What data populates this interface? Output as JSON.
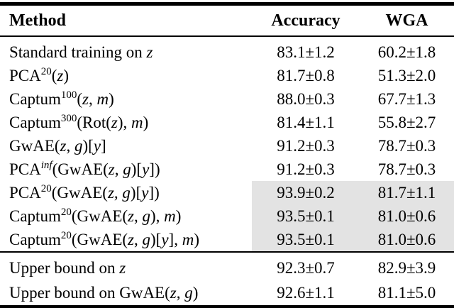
{
  "table": {
    "headers": {
      "method": "Method",
      "accuracy": "Accuracy",
      "wga": "WGA"
    },
    "highlight_color": "#e3e3e3",
    "rule_color": "#000000",
    "text_color": "#000000",
    "rows": [
      {
        "method": [
          [
            "Standard training on ",
            "rm"
          ],
          [
            "z",
            "it"
          ]
        ],
        "method_text": "Standard training on z",
        "accuracy": "83.1±1.2",
        "wga": "60.2±1.8",
        "highlight": false
      },
      {
        "method": [
          [
            "PCA",
            "rm"
          ],
          [
            "20",
            "sup"
          ],
          [
            "(",
            "rm"
          ],
          [
            "z",
            "it"
          ],
          [
            ")",
            "rm"
          ]
        ],
        "method_text": "PCA^20(z)",
        "accuracy": "81.7±0.8",
        "wga": "51.3±2.0",
        "highlight": false
      },
      {
        "method": [
          [
            "Captum",
            "rm"
          ],
          [
            "100",
            "sup"
          ],
          [
            "(",
            "rm"
          ],
          [
            "z",
            "it"
          ],
          [
            ", ",
            "rm"
          ],
          [
            "m",
            "it"
          ],
          [
            ")",
            "rm"
          ]
        ],
        "method_text": "Captum^100(z, m)",
        "accuracy": "88.0±0.3",
        "wga": "67.7±1.3",
        "highlight": false
      },
      {
        "method": [
          [
            "Captum",
            "rm"
          ],
          [
            "300",
            "sup"
          ],
          [
            "(Rot(",
            "rm"
          ],
          [
            "z",
            "it"
          ],
          [
            "), ",
            "rm"
          ],
          [
            "m",
            "it"
          ],
          [
            ")",
            "rm"
          ]
        ],
        "method_text": "Captum^300(Rot(z), m)",
        "accuracy": "81.4±1.1",
        "wga": "55.8±2.7",
        "highlight": false
      },
      {
        "method": [
          [
            "GwAE(",
            "rm"
          ],
          [
            "z",
            "it"
          ],
          [
            ", ",
            "rm"
          ],
          [
            "g",
            "it"
          ],
          [
            ")[",
            "rm"
          ],
          [
            "y",
            "it"
          ],
          [
            "]",
            "rm"
          ]
        ],
        "method_text": "GwAE(z, g)[y]",
        "accuracy": "91.2±0.3",
        "wga": "78.7±0.3",
        "highlight": false
      },
      {
        "method": [
          [
            "PCA",
            "rm"
          ],
          [
            "inf",
            "supit"
          ],
          [
            "(GwAE(",
            "rm"
          ],
          [
            "z",
            "it"
          ],
          [
            ", ",
            "rm"
          ],
          [
            "g",
            "it"
          ],
          [
            ")[",
            "rm"
          ],
          [
            "y",
            "it"
          ],
          [
            "])",
            "rm"
          ]
        ],
        "method_text": "PCA^inf(GwAE(z, g)[y])",
        "accuracy": "91.2±0.3",
        "wga": "78.7±0.3",
        "highlight": false
      },
      {
        "method": [
          [
            "PCA",
            "rm"
          ],
          [
            "20",
            "sup"
          ],
          [
            "(GwAE(",
            "rm"
          ],
          [
            "z",
            "it"
          ],
          [
            ", ",
            "rm"
          ],
          [
            "g",
            "it"
          ],
          [
            ")[",
            "rm"
          ],
          [
            "y",
            "it"
          ],
          [
            "])",
            "rm"
          ]
        ],
        "method_text": "PCA^20(GwAE(z, g)[y])",
        "accuracy": "93.9±0.2",
        "wga": "81.7±1.1",
        "highlight": true
      },
      {
        "method": [
          [
            "Captum",
            "rm"
          ],
          [
            "20",
            "sup"
          ],
          [
            "(GwAE(",
            "rm"
          ],
          [
            "z",
            "it"
          ],
          [
            ", ",
            "rm"
          ],
          [
            "g",
            "it"
          ],
          [
            "), ",
            "rm"
          ],
          [
            "m",
            "it"
          ],
          [
            ")",
            "rm"
          ]
        ],
        "method_text": "Captum^20(GwAE(z, g), m)",
        "accuracy": "93.5±0.1",
        "wga": "81.0±0.6",
        "highlight": true
      },
      {
        "method": [
          [
            "Captum",
            "rm"
          ],
          [
            "20",
            "sup"
          ],
          [
            "(GwAE(",
            "rm"
          ],
          [
            "z",
            "it"
          ],
          [
            ", ",
            "rm"
          ],
          [
            "g",
            "it"
          ],
          [
            ")[",
            "rm"
          ],
          [
            "y",
            "it"
          ],
          [
            "], ",
            "rm"
          ],
          [
            "m",
            "it"
          ],
          [
            ")",
            "rm"
          ]
        ],
        "method_text": "Captum^20(GwAE(z, g)[y], m)",
        "accuracy": "93.5±0.1",
        "wga": "81.0±0.6",
        "highlight": true
      }
    ],
    "footer_rows": [
      {
        "method": [
          [
            "Upper bound on ",
            "rm"
          ],
          [
            "z",
            "it"
          ]
        ],
        "method_text": "Upper bound on z",
        "accuracy": "92.3±0.7",
        "wga": "82.9±3.9",
        "highlight": false
      },
      {
        "method": [
          [
            "Upper bound on GwAE(",
            "rm"
          ],
          [
            "z",
            "it"
          ],
          [
            ", ",
            "rm"
          ],
          [
            "g",
            "it"
          ],
          [
            ")",
            "rm"
          ]
        ],
        "method_text": "Upper bound on GwAE(z, g)",
        "accuracy": "92.6±1.1",
        "wga": "81.1±5.0",
        "highlight": false
      }
    ]
  }
}
